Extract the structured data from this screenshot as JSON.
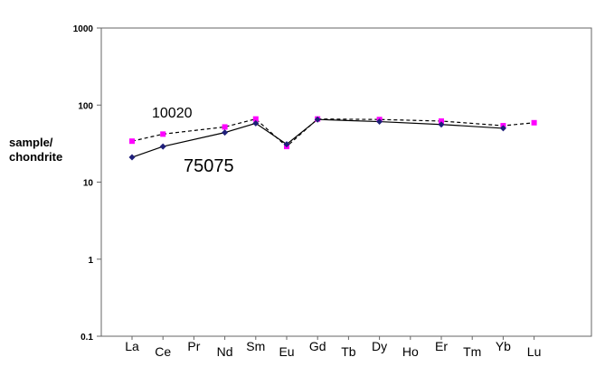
{
  "chart_data": {
    "type": "line",
    "title": "",
    "xlabel": "",
    "ylabel": [
      "sample/",
      "chondrite"
    ],
    "yscale": "log",
    "ylim": [
      0.1,
      1000
    ],
    "y_ticks": [
      "0.1",
      "1",
      "10",
      "100",
      "1000"
    ],
    "categories": [
      "La",
      "Ce",
      "Pr",
      "Nd",
      "Sm",
      "Eu",
      "Gd",
      "Tb",
      "Dy",
      "Ho",
      "Er",
      "Tm",
      "Yb",
      "Lu"
    ],
    "grid": false,
    "legend": "none",
    "series": [
      {
        "label": "10020",
        "style": "dashed",
        "marker": "square",
        "marker_color": "#ff00ff",
        "line_color": "#000000",
        "points": [
          {
            "x": "La",
            "y": 34
          },
          {
            "x": "Ce",
            "y": 42
          },
          {
            "x": "Nd",
            "y": 52
          },
          {
            "x": "Sm",
            "y": 66
          },
          {
            "x": "Eu",
            "y": 29
          },
          {
            "x": "Gd",
            "y": 66
          },
          {
            "x": "Dy",
            "y": 65
          },
          {
            "x": "Er",
            "y": 62
          },
          {
            "x": "Yb",
            "y": 54
          },
          {
            "x": "Lu",
            "y": 59
          }
        ]
      },
      {
        "label": "75075",
        "style": "solid",
        "marker": "diamond",
        "marker_color": "#1f1f7a",
        "line_color": "#000000",
        "points": [
          {
            "x": "La",
            "y": 21
          },
          {
            "x": "Ce",
            "y": 29
          },
          {
            "x": "Nd",
            "y": 44
          },
          {
            "x": "Sm",
            "y": 58
          },
          {
            "x": "Eu",
            "y": 31
          },
          {
            "x": "Gd",
            "y": 65
          },
          {
            "x": "Dy",
            "y": 61
          },
          {
            "x": "Er",
            "y": 56
          },
          {
            "x": "Yb",
            "y": 50
          }
        ]
      }
    ]
  }
}
